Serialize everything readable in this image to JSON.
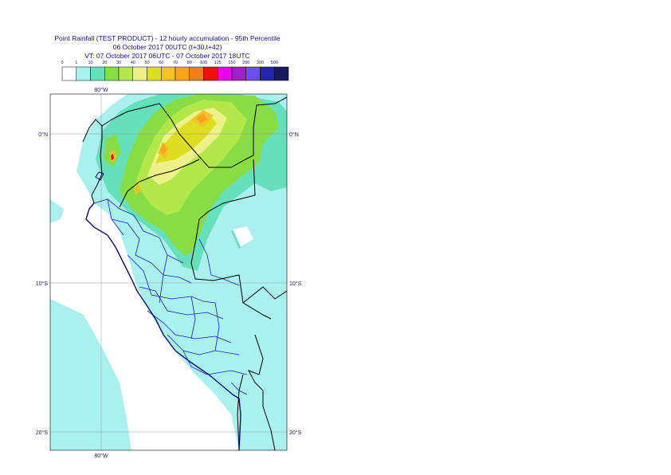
{
  "title": {
    "line1": "Point Rainfall (TEST PRODUCT) - 12 hourly accumulation - 95th Percentile",
    "line2": "06 October 2017 00UTC (t+30,t+42)",
    "line3": "VT: 07 October 2017 06UTC - 07 October 2017 18UTC"
  },
  "legend": {
    "thresholds": [
      "0",
      "1",
      "10",
      "20",
      "30",
      "40",
      "50",
      "60",
      "70",
      "80",
      "100",
      "125",
      "150",
      "200",
      "300",
      "500"
    ],
    "colors": [
      "#ffffff",
      "#aaf0ee",
      "#66e0bb",
      "#88dd44",
      "#b2e84a",
      "#eef088",
      "#dddd22",
      "#f3c22a",
      "#f6a418",
      "#f47d15",
      "#ee1111",
      "#ee00ee",
      "#9f1fd0",
      "#6a4ef0",
      "#2324b3",
      "#18185c"
    ]
  },
  "map": {
    "lat_labels": [
      "0°N",
      "10°S",
      "20°S"
    ],
    "lon_label": "80°W"
  }
}
